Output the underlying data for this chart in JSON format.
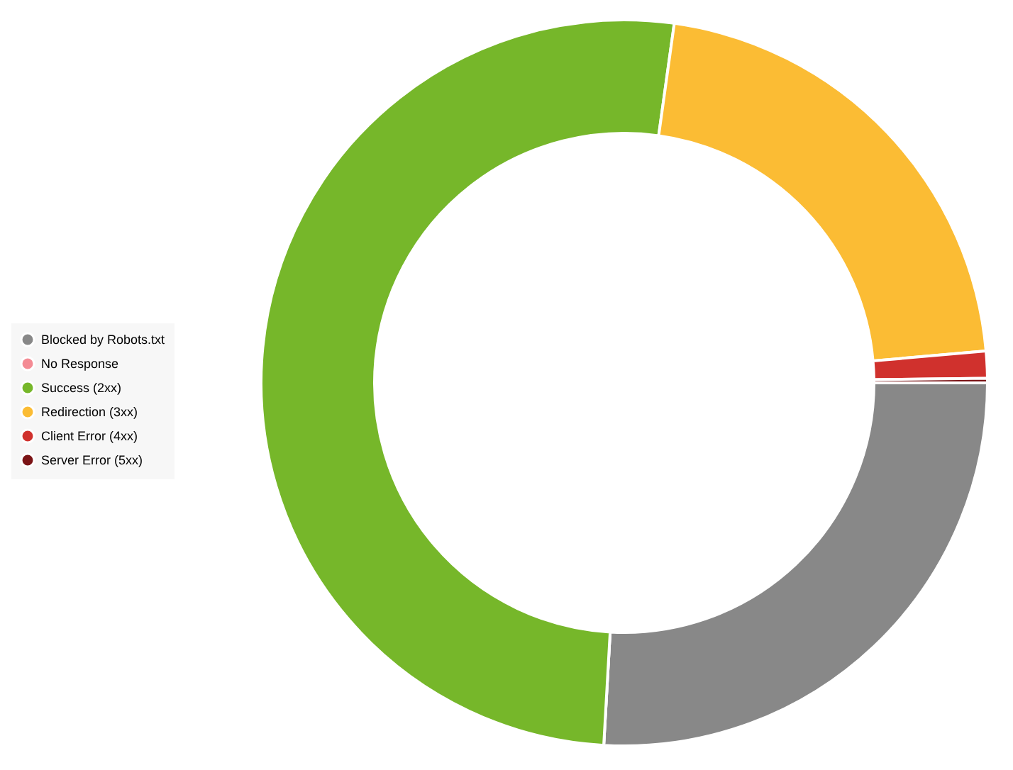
{
  "chart_data": {
    "type": "donut",
    "categories": [
      "Blocked by Robots.txt",
      "No Response",
      "Success (2xx)",
      "Redirection (3xx)",
      "Client Error (4xx)",
      "Server Error (5xx)"
    ],
    "values": [
      25.9,
      0,
      51.3,
      21.4,
      1.2,
      0.2
    ],
    "colors": [
      "#888888",
      "#f48b94",
      "#76b72a",
      "#fbbc34",
      "#d0312d",
      "#7b1416"
    ],
    "legend": "left"
  }
}
